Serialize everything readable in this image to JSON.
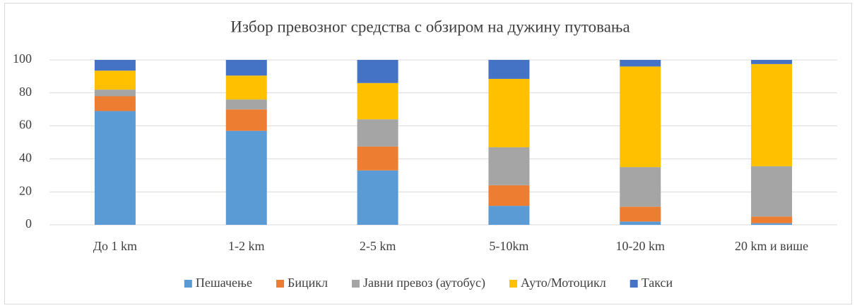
{
  "chart_data": {
    "type": "stacked-bar",
    "title": "Избор превозног средства с обзиром на дужину путовања",
    "categories": [
      "До 1 km",
      "1-2 km",
      "2-5 km",
      "5-10km",
      "10-20 km",
      "20 km и више"
    ],
    "series": [
      {
        "name": "Пешачење",
        "color": "#5b9bd5",
        "values": [
          69,
          57,
          33,
          11.5,
          2,
          1
        ]
      },
      {
        "name": "Бицикл",
        "color": "#ed7d31",
        "values": [
          9,
          13,
          14.5,
          12.5,
          9,
          4
        ]
      },
      {
        "name": "Јавни превоз (аутобус)",
        "color": "#a5a5a5",
        "values": [
          4,
          6,
          16.5,
          23,
          24,
          30.5
        ]
      },
      {
        "name": "Ауто/Мотоцикл",
        "color": "#ffc000",
        "values": [
          11.5,
          14.5,
          22,
          41.5,
          61,
          62
        ]
      },
      {
        "name": "Такси",
        "color": "#4472c4",
        "values": [
          6.5,
          9.5,
          14,
          11.5,
          4,
          2.5
        ]
      }
    ],
    "ylim": [
      0,
      100
    ],
    "yticks": [
      0,
      20,
      40,
      60,
      80,
      100
    ],
    "grid": true,
    "legend": "bottom"
  }
}
